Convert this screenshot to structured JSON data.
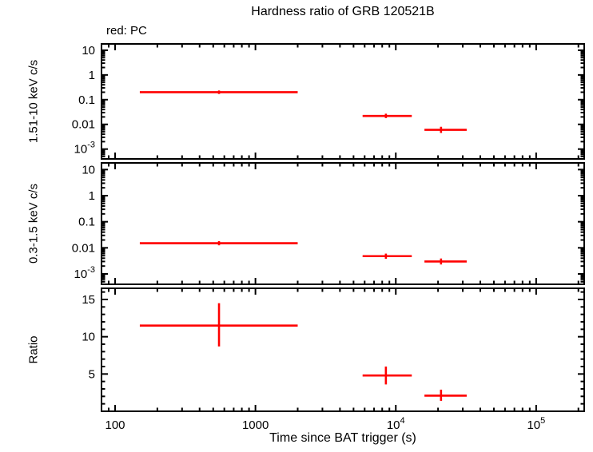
{
  "chart_data": {
    "type": "scatter",
    "title": "Hardness ratio of GRB 120521B",
    "annotation": "red: PC",
    "xlabel": "Time since BAT trigger (s)",
    "x_scale": "log",
    "xlim": [
      80,
      220000
    ],
    "x_ticks": [
      {
        "value": 100,
        "label": "100"
      },
      {
        "value": 1000,
        "label": "1000"
      },
      {
        "value": 10000,
        "label": "10",
        "exp": "4"
      },
      {
        "value": 100000,
        "label": "10",
        "exp": "5"
      }
    ],
    "marker_color": "#ff0000",
    "axis_color": "#000000",
    "legend_position": "none",
    "grid": false,
    "panels": [
      {
        "ylabel": "1.51-10 keV c/s",
        "y_scale": "log",
        "ylim": [
          0.0004,
          18
        ],
        "y_ticks": [
          {
            "value": 10,
            "label": "10"
          },
          {
            "value": 1,
            "label": "1"
          },
          {
            "value": 0.1,
            "label": "0.1"
          },
          {
            "value": 0.01,
            "label": "0.01"
          },
          {
            "value": 0.001,
            "label": "10",
            "exp": "-3"
          }
        ],
        "points": [
          {
            "x": 550,
            "x_lo": 150,
            "x_hi": 2000,
            "y": 0.2,
            "y_lo": 0.17,
            "y_hi": 0.235
          },
          {
            "x": 8500,
            "x_lo": 5800,
            "x_hi": 13000,
            "y": 0.022,
            "y_lo": 0.018,
            "y_hi": 0.027
          },
          {
            "x": 21000,
            "x_lo": 16000,
            "x_hi": 32000,
            "y": 0.006,
            "y_lo": 0.0045,
            "y_hi": 0.008
          }
        ]
      },
      {
        "ylabel": "0.3-1.5 keV c/s",
        "y_scale": "log",
        "ylim": [
          0.0004,
          18
        ],
        "y_ticks": [
          {
            "value": 10,
            "label": "10"
          },
          {
            "value": 1,
            "label": "1"
          },
          {
            "value": 0.1,
            "label": "0.1"
          },
          {
            "value": 0.01,
            "label": "0.01"
          },
          {
            "value": 0.001,
            "label": "10",
            "exp": "-3"
          }
        ],
        "points": [
          {
            "x": 550,
            "x_lo": 150,
            "x_hi": 2000,
            "y": 0.015,
            "y_lo": 0.0125,
            "y_hi": 0.018
          },
          {
            "x": 8500,
            "x_lo": 5800,
            "x_hi": 13000,
            "y": 0.0048,
            "y_lo": 0.0038,
            "y_hi": 0.006
          },
          {
            "x": 21000,
            "x_lo": 16000,
            "x_hi": 32000,
            "y": 0.003,
            "y_lo": 0.0023,
            "y_hi": 0.0039
          }
        ]
      },
      {
        "ylabel": "Ratio",
        "y_scale": "linear",
        "ylim": [
          0,
          16.5
        ],
        "minor_step": 1,
        "y_ticks": [
          {
            "value": 15,
            "label": "15"
          },
          {
            "value": 10,
            "label": "10"
          },
          {
            "value": 5,
            "label": "5"
          }
        ],
        "points": [
          {
            "x": 550,
            "x_lo": 150,
            "x_hi": 2000,
            "y": 11.5,
            "y_lo": 8.7,
            "y_hi": 14.5
          },
          {
            "x": 8500,
            "x_lo": 5800,
            "x_hi": 13000,
            "y": 4.8,
            "y_lo": 3.6,
            "y_hi": 6.0
          },
          {
            "x": 21000,
            "x_lo": 16000,
            "x_hi": 32000,
            "y": 2.1,
            "y_lo": 1.4,
            "y_hi": 2.9
          }
        ]
      }
    ]
  }
}
